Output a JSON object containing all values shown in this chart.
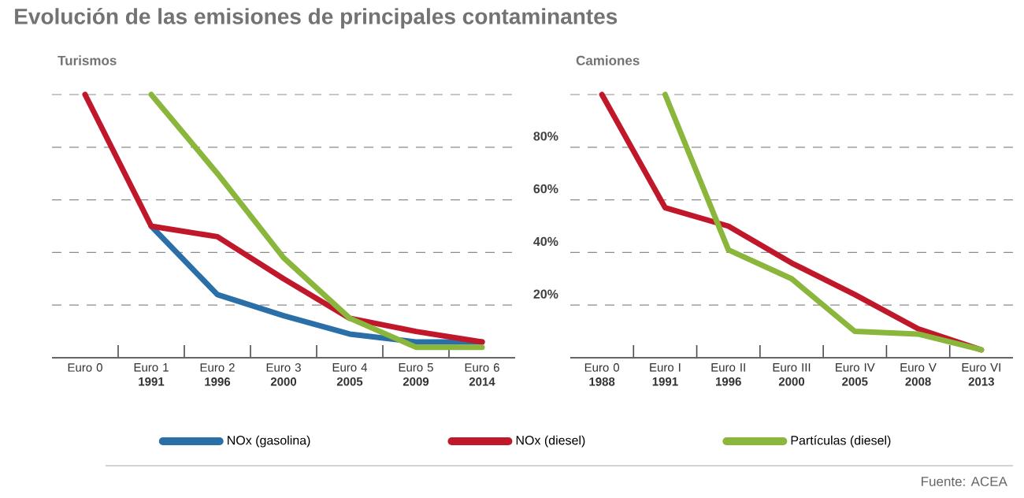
{
  "chart_data": [
    {
      "type": "line",
      "title": "Evolución de las emisiones de principales contaminantes",
      "subtitle": "Turismos",
      "categories": [
        "Euro 0",
        "Euro 1 **1991**",
        "Euro 2 **1996**",
        "Euro 3 **2000**",
        "Euro 4 **2005**",
        "Euro 5 **2009**",
        "Euro 6 **2014**"
      ],
      "series": [
        {
          "name": "NOx (gasolina)",
          "color": "#2a6fa8",
          "values": [
            null,
            50,
            24,
            16,
            9,
            6,
            6
          ]
        },
        {
          "name": "NOx (diesel)",
          "color": "#c0182a",
          "values": [
            100,
            50,
            46,
            30,
            15,
            10,
            6
          ]
        },
        {
          "name": "Partículas (diesel)",
          "color": "#8ab63c",
          "values": [
            null,
            100,
            70,
            38,
            15,
            4,
            4
          ]
        }
      ],
      "ylim": [
        0,
        100
      ],
      "yticks": [
        20,
        40,
        60,
        80,
        100
      ],
      "tick_labels": "x",
      "grid": "y",
      "legend": "bottom",
      "marker": "none",
      "line_style": "solid"
    },
    {
      "type": "line",
      "title": "Camiones",
      "categories": [
        "Euro 0 **1988**",
        "Euro I **1991**",
        "Euro II **1996**",
        "Euro III **2000**",
        "Euro IV **2005**",
        "Euro V **2008**",
        "Euro VI **2013**"
      ],
      "series": [
        {
          "color": "#c0182a",
          "values": [
            100,
            57,
            50,
            36,
            24,
            11,
            3
          ]
        },
        {
          "color": "#8ab63c",
          "values": [
            null,
            100,
            41,
            30,
            10,
            9,
            3
          ]
        }
      ],
      "ylim": [
        0,
        100
      ],
      "yticks": [
        {
          "value": 20,
          "label": "20%"
        },
        {
          "value": 40,
          "label": "40%"
        },
        {
          "value": 60,
          "label": "60%"
        },
        {
          "value": 80,
          "label": "80%"
        },
        {
          "value": 100,
          "label": null
        }
      ],
      "grid": "y",
      "marker": "none",
      "line_style": "solid",
      "annotations": [
        "Fuente: ACEA"
      ]
    }
  ]
}
